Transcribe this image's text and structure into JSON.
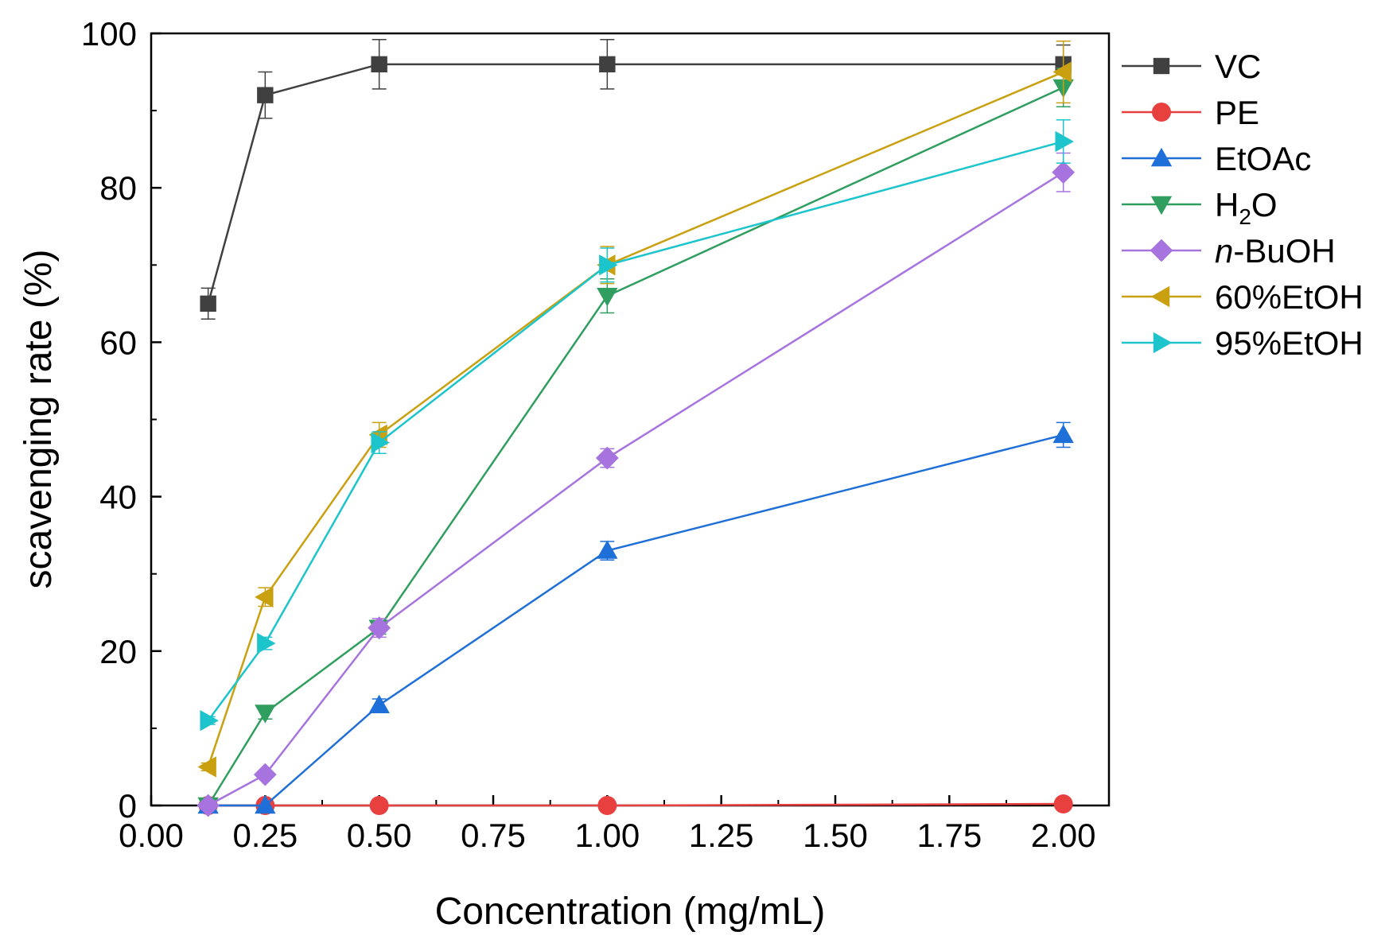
{
  "chart_data": {
    "type": "line",
    "title": "",
    "xlabel": "Concentration (mg/mL)",
    "ylabel": "scavenging rate (%)",
    "xlim": [
      0.0,
      2.1
    ],
    "ylim": [
      0,
      100
    ],
    "xticks": [
      "0.00",
      "0.25",
      "0.50",
      "0.75",
      "1.00",
      "1.25",
      "1.50",
      "1.75",
      "2.00"
    ],
    "yticks": [
      "0",
      "20",
      "40",
      "60",
      "80",
      "100"
    ],
    "x": [
      0.125,
      0.25,
      0.5,
      1.0,
      2.0
    ],
    "grid": false,
    "legend_position": "right",
    "series": [
      {
        "name": "VC",
        "color": "#404040",
        "marker": "square",
        "values": [
          65,
          92,
          96,
          96,
          96
        ],
        "errors": [
          2,
          3,
          3.2,
          3.2,
          2.5
        ]
      },
      {
        "name": "PE",
        "color": "#e8403f",
        "marker": "circle",
        "values": [
          0,
          0,
          0,
          0,
          0.2
        ],
        "errors": [
          0,
          0,
          0,
          0,
          0
        ]
      },
      {
        "name": "EtOAc",
        "color": "#1f6fd9",
        "marker": "triangle-up",
        "values": [
          0,
          0,
          13,
          33,
          48
        ],
        "errors": [
          0,
          0,
          0.8,
          1.2,
          1.6
        ]
      },
      {
        "name": "H2O",
        "name_main": "H",
        "name_sub": "2",
        "name_tail": "O",
        "color": "#2f9e5f",
        "marker": "triangle-down",
        "values": [
          0,
          12,
          23,
          66,
          93
        ],
        "errors": [
          0,
          0.8,
          0.8,
          2.2,
          2.5
        ]
      },
      {
        "name": "n-BuOH",
        "name_italic": "n",
        "name_tail": "-BuOH",
        "color": "#a774df",
        "marker": "diamond",
        "values": [
          0,
          4,
          23,
          45,
          82
        ],
        "errors": [
          0,
          0.5,
          1.2,
          1.2,
          2.5
        ]
      },
      {
        "name": "60%EtOH",
        "color": "#c9a010",
        "marker": "triangle-left",
        "values": [
          5,
          27,
          48,
          70,
          95
        ],
        "errors": [
          0.5,
          1.2,
          1.6,
          2.4,
          4
        ]
      },
      {
        "name": "95%EtOH",
        "color": "#1cc4cc",
        "marker": "triangle-right",
        "values": [
          11,
          21,
          47,
          70,
          86
        ],
        "errors": [
          0.5,
          0.8,
          1.4,
          2.2,
          2.8
        ]
      }
    ]
  }
}
